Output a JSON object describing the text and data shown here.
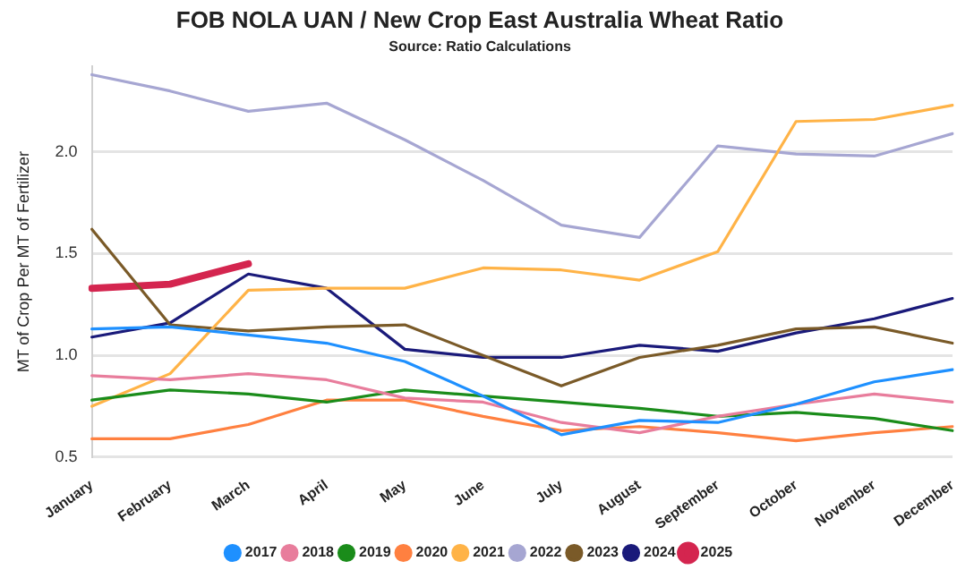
{
  "chart_data": {
    "type": "line",
    "title": "FOB NOLA UAN / New Crop East Australia Wheat Ratio",
    "subtitle": "Source: Ratio Calculations",
    "ylabel": "MT of Crop Per MT of Fertilizer",
    "categories": [
      "January",
      "February",
      "March",
      "April",
      "May",
      "June",
      "July",
      "August",
      "September",
      "October",
      "November",
      "December"
    ],
    "series": [
      {
        "name": "2017",
        "color": "#1e90ff",
        "values": [
          1.13,
          1.14,
          1.1,
          1.06,
          0.97,
          0.8,
          0.61,
          0.68,
          0.67,
          0.76,
          0.87,
          0.93
        ]
      },
      {
        "name": "2018",
        "color": "#e87d9c",
        "values": [
          0.9,
          0.88,
          0.91,
          0.88,
          0.79,
          0.77,
          0.67,
          0.62,
          0.7,
          0.76,
          0.81,
          0.77
        ]
      },
      {
        "name": "2019",
        "color": "#1a8c1a",
        "values": [
          0.78,
          0.83,
          0.81,
          0.77,
          0.83,
          0.8,
          0.77,
          0.74,
          0.7,
          0.72,
          0.69,
          0.63
        ]
      },
      {
        "name": "2020",
        "color": "#ff8040",
        "values": [
          0.59,
          0.59,
          0.66,
          0.78,
          0.78,
          0.7,
          0.63,
          0.65,
          0.62,
          0.58,
          0.62,
          0.65
        ]
      },
      {
        "name": "2021",
        "color": "#ffb347",
        "values": [
          0.75,
          0.91,
          1.32,
          1.33,
          1.33,
          1.43,
          1.42,
          1.37,
          1.51,
          2.15,
          2.16,
          2.23
        ]
      },
      {
        "name": "2022",
        "color": "#a6a6d2",
        "values": [
          2.38,
          2.3,
          2.2,
          2.24,
          2.06,
          1.86,
          1.64,
          1.58,
          2.03,
          1.99,
          1.98,
          2.09
        ]
      },
      {
        "name": "2023",
        "color": "#7a5a28",
        "values": [
          1.62,
          1.15,
          1.12,
          1.14,
          1.15,
          1.0,
          0.85,
          0.99,
          1.05,
          1.13,
          1.14,
          1.06
        ]
      },
      {
        "name": "2024",
        "color": "#1a1a7a",
        "values": [
          1.09,
          1.16,
          1.4,
          1.33,
          1.03,
          0.99,
          0.99,
          1.05,
          1.02,
          1.11,
          1.18,
          1.28
        ]
      },
      {
        "name": "2025",
        "color": "#d4254f",
        "values": [
          1.33,
          1.35,
          1.45,
          null,
          null,
          null,
          null,
          null,
          null,
          null,
          null,
          null
        ]
      }
    ],
    "ylim": [
      0.5,
      2.42
    ],
    "yticks": [
      {
        "value": 0.5,
        "label": "0.5"
      },
      {
        "value": 1,
        "label": "1.0"
      },
      {
        "value": 1.5,
        "label": "1.5"
      },
      {
        "value": 2,
        "label": "2.0"
      }
    ],
    "grid": "y",
    "legend": "bottom",
    "marker": "none"
  }
}
